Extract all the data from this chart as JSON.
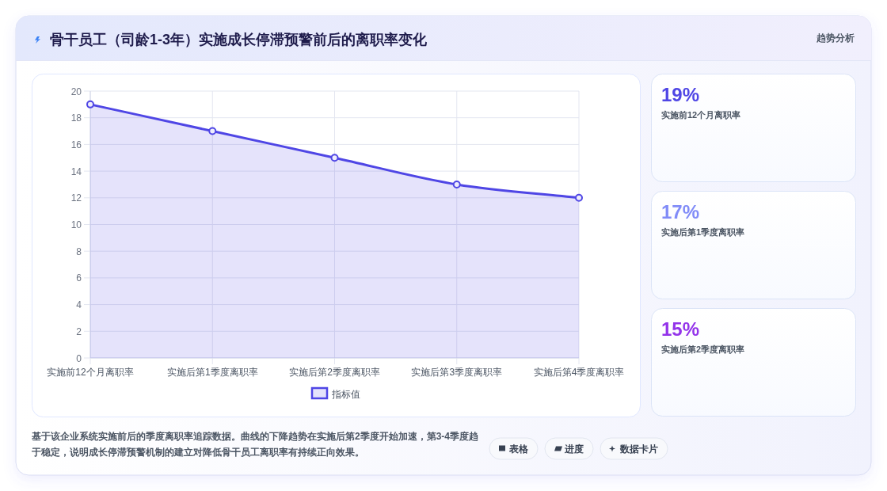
{
  "chart_data": [
    {
      "type": "area",
      "title": "骨干员工（司龄1-3年）实施成长停滞预警前后的离职率变化",
      "categories": [
        "实施前12个月离职率",
        "实施后第1季度离职率",
        "实施后第2季度离职率",
        "实施后第3季度离职率",
        "实施后第4季度离职率"
      ],
      "series": [
        {
          "name": "指标值",
          "color": "#4f46e5",
          "values": [
            19,
            17,
            15,
            13,
            12
          ]
        }
      ],
      "ylim": [
        0,
        20
      ],
      "yticks": [
        0,
        2,
        4,
        6,
        8,
        10,
        12,
        14,
        16,
        18,
        20
      ],
      "grid": true,
      "legend": "bottom",
      "marker": "circle",
      "line_style": "solid",
      "annotations": [
        "趋势分析",
        "基于该企业系统实施前后的季度离职率追踪数据。曲线的下降趋势在实施后第2季度开始加速，第3-4季度趋于稳定，说明成长停滞预警机制的建立对降低骨干员工离职率有持续正向效果。",
        "表格",
        "进度",
        "数据卡片"
      ]
    },
    {
      "type": "other",
      "annotations": [
        "19%",
        "实施前12个月离职率",
        "17%",
        "实施后第1季度离职率",
        "15%",
        "实施后第2季度离职率"
      ],
      "colors": [
        "#4f46e5",
        "#818cf8",
        "#9333ea"
      ]
    }
  ]
}
